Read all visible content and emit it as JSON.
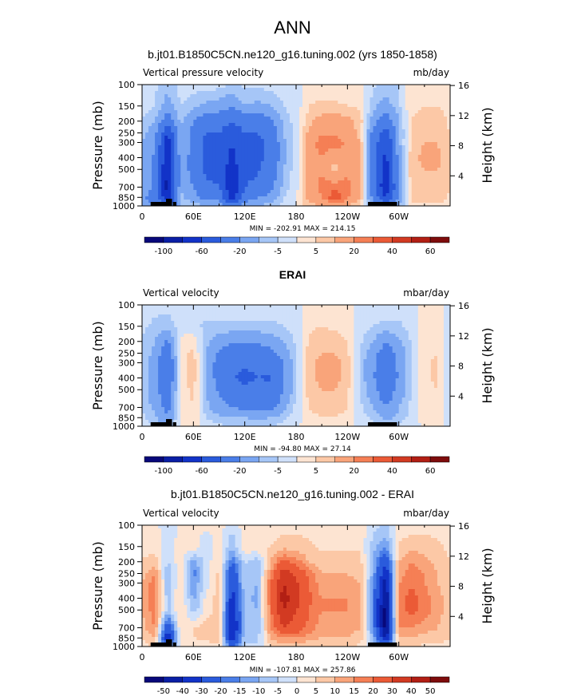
{
  "figure_title": "ANN",
  "chart_data": [
    {
      "type": "heatmap",
      "title": "b.jt01.B1850C5CN.ne120_g16.tuning.002 (yrs 1850-1858)",
      "left_label": "Vertical pressure velocity",
      "right_label": "mb/day",
      "ylabel": "Pressure (mb)",
      "y2label": "Height (km)",
      "x_ticks": [
        "0",
        "60E",
        "120E",
        "180",
        "120W",
        "60W"
      ],
      "x_tick_lon": [
        0,
        60,
        120,
        180,
        240,
        300
      ],
      "xlim": [
        0,
        360
      ],
      "y_ticks": [
        "100",
        "150",
        "200",
        "250",
        "300",
        "400",
        "500",
        "700",
        "850",
        "1000"
      ],
      "y_tick_p": [
        100,
        150,
        200,
        250,
        300,
        400,
        500,
        700,
        850,
        1000
      ],
      "ylim": [
        1000,
        100
      ],
      "y2_ticks": [
        "4",
        "8",
        "12",
        "16"
      ],
      "y2_tick_km": [
        4,
        8,
        12,
        16
      ],
      "stats": "MIN = -202.91   MAX = 214.15",
      "colorbar_labels": [
        "-100",
        "-60",
        "-20",
        "-5",
        "5",
        "20",
        "40",
        "60"
      ],
      "colorbar_label_after_box": [
        1,
        3,
        5,
        7,
        9,
        11,
        13,
        15
      ],
      "field": {
        "lon": [
          0,
          15,
          30,
          45,
          60,
          75,
          90,
          105,
          120,
          135,
          150,
          165,
          180,
          195,
          210,
          225,
          240,
          255,
          270,
          285,
          300,
          315,
          330,
          345,
          360
        ],
        "p": [
          100,
          150,
          200,
          250,
          300,
          400,
          500,
          700,
          850,
          1000
        ],
        "values": [
          [
            -3,
            -4,
            -8,
            -3,
            -3,
            -3,
            -3,
            -6,
            -4,
            -4,
            -3,
            -3,
            -2,
            3,
            3,
            3,
            2,
            2,
            -4,
            -6,
            -5,
            3,
            3,
            3,
            2
          ],
          [
            -3,
            -5,
            -14,
            -5,
            -8,
            -12,
            -14,
            -18,
            -10,
            -12,
            -10,
            -5,
            -3,
            5,
            6,
            6,
            5,
            4,
            -8,
            -14,
            -6,
            4,
            5,
            5,
            3
          ],
          [
            -5,
            -10,
            -30,
            -8,
            -20,
            -30,
            -30,
            -40,
            -30,
            -30,
            -25,
            -8,
            -3,
            8,
            14,
            15,
            12,
            8,
            -15,
            -30,
            -10,
            5,
            8,
            8,
            4
          ],
          [
            -8,
            -15,
            -60,
            -10,
            -25,
            -40,
            -40,
            -55,
            -40,
            -40,
            -30,
            -10,
            -3,
            12,
            18,
            18,
            14,
            8,
            -25,
            -50,
            -12,
            6,
            8,
            8,
            5
          ],
          [
            -10,
            -18,
            -75,
            -10,
            -25,
            -45,
            -45,
            -60,
            -45,
            -45,
            -35,
            -12,
            -3,
            14,
            25,
            25,
            18,
            10,
            -30,
            -60,
            -12,
            7,
            10,
            10,
            5
          ],
          [
            -12,
            -22,
            -80,
            -12,
            -25,
            -45,
            -48,
            -65,
            -48,
            -45,
            -35,
            -12,
            -3,
            14,
            20,
            10,
            20,
            10,
            -30,
            -65,
            -14,
            8,
            12,
            12,
            6
          ],
          [
            -12,
            -22,
            -85,
            -12,
            -25,
            -45,
            -48,
            -70,
            -45,
            -42,
            -30,
            -10,
            -2,
            12,
            18,
            8,
            18,
            10,
            -30,
            -70,
            -15,
            8,
            10,
            10,
            6
          ],
          [
            -10,
            -25,
            -90,
            -10,
            -20,
            -35,
            -38,
            -80,
            -40,
            -35,
            -25,
            -8,
            -2,
            12,
            25,
            25,
            25,
            10,
            -30,
            -80,
            -18,
            8,
            8,
            8,
            5
          ],
          [
            -15,
            -30,
            -80,
            -8,
            -15,
            -25,
            -25,
            -70,
            -30,
            -20,
            -15,
            -5,
            -1,
            12,
            18,
            40,
            22,
            10,
            -25,
            -60,
            -18,
            6,
            8,
            8,
            4
          ],
          [
            -10,
            -20,
            -40,
            -5,
            -5,
            -10,
            -10,
            -30,
            -10,
            -8,
            -8,
            -3,
            -1,
            8,
            10,
            12,
            10,
            5,
            -10,
            -30,
            -10,
            4,
            4,
            4,
            3
          ]
        ]
      }
    },
    {
      "type": "heatmap",
      "title": "ERAI",
      "left_label": "Vertical velocity",
      "right_label": "mbar/day",
      "ylabel": "Pressure (mb)",
      "y2label": "Height (km)",
      "x_ticks": [
        "0",
        "60E",
        "120E",
        "180",
        "120W",
        "60W"
      ],
      "x_tick_lon": [
        0,
        60,
        120,
        180,
        240,
        300
      ],
      "xlim": [
        0,
        360
      ],
      "y_ticks": [
        "100",
        "150",
        "200",
        "250",
        "300",
        "400",
        "500",
        "700",
        "850",
        "1000"
      ],
      "y_tick_p": [
        100,
        150,
        200,
        250,
        300,
        400,
        500,
        700,
        850,
        1000
      ],
      "ylim": [
        1000,
        100
      ],
      "y2_ticks": [
        "4",
        "8",
        "12",
        "16"
      ],
      "y2_tick_km": [
        4,
        8,
        12,
        16
      ],
      "stats": "MIN = -94.80   MAX =  27.14",
      "colorbar_labels": [
        "-100",
        "-60",
        "-20",
        "-5",
        "5",
        "20",
        "40",
        "60"
      ],
      "colorbar_label_after_box": [
        1,
        3,
        5,
        7,
        9,
        11,
        13,
        15
      ],
      "field": {
        "lon": [
          0,
          15,
          30,
          45,
          60,
          75,
          90,
          105,
          120,
          135,
          150,
          165,
          180,
          195,
          210,
          225,
          240,
          255,
          270,
          285,
          300,
          315,
          330,
          345,
          360
        ],
        "p": [
          100,
          150,
          200,
          250,
          300,
          400,
          500,
          700,
          850,
          1000
        ],
        "values": [
          [
            -3,
            -4,
            -3,
            -2,
            -3,
            -3,
            -3,
            -3,
            -3,
            -3,
            -3,
            -3,
            -2,
            2,
            2,
            2,
            2,
            -2,
            -3,
            -3,
            -3,
            -2,
            2,
            2,
            -2
          ],
          [
            -4,
            -6,
            -8,
            -3,
            -4,
            -6,
            -6,
            -6,
            -6,
            -6,
            -6,
            -5,
            -3,
            4,
            5,
            4,
            3,
            -3,
            -5,
            -6,
            -6,
            -3,
            3,
            3,
            -3
          ],
          [
            -5,
            -10,
            -22,
            2,
            4,
            -8,
            -15,
            -18,
            -20,
            -18,
            -15,
            -10,
            -4,
            6,
            8,
            8,
            5,
            -4,
            -10,
            -20,
            -12,
            -4,
            3,
            4,
            -4
          ],
          [
            -6,
            -12,
            -30,
            3,
            6,
            -10,
            -22,
            -28,
            -30,
            -28,
            -25,
            -15,
            -5,
            7,
            10,
            10,
            6,
            -5,
            -15,
            -28,
            -15,
            -5,
            4,
            5,
            -5
          ],
          [
            -6,
            -15,
            -35,
            3,
            8,
            -12,
            -25,
            -35,
            -38,
            -35,
            -32,
            -20,
            -5,
            8,
            12,
            12,
            8,
            -6,
            -18,
            -32,
            -18,
            -5,
            4,
            6,
            -5
          ],
          [
            -6,
            -15,
            -35,
            3,
            8,
            -12,
            -25,
            -38,
            -45,
            -40,
            -42,
            -22,
            -5,
            8,
            12,
            12,
            8,
            -6,
            -18,
            -35,
            -18,
            -5,
            4,
            6,
            -5
          ],
          [
            -6,
            -15,
            -32,
            3,
            6,
            -10,
            -22,
            -32,
            -35,
            -32,
            -38,
            -20,
            -5,
            7,
            10,
            10,
            6,
            -5,
            -15,
            -30,
            -15,
            -5,
            3,
            5,
            -5
          ],
          [
            -5,
            -12,
            -25,
            2,
            5,
            -8,
            -15,
            -20,
            -22,
            -22,
            -25,
            -12,
            -3,
            5,
            8,
            8,
            5,
            -4,
            -10,
            -20,
            -10,
            -3,
            3,
            4,
            -4
          ],
          [
            -4,
            -8,
            -20,
            2,
            3,
            -5,
            -8,
            -10,
            -10,
            -12,
            -10,
            -6,
            -2,
            3,
            5,
            5,
            3,
            -3,
            -6,
            -12,
            -8,
            -3,
            2,
            3,
            -3
          ],
          [
            -3,
            -5,
            -10,
            1,
            2,
            -3,
            -4,
            -5,
            -5,
            -6,
            -5,
            -3,
            -1,
            2,
            3,
            3,
            2,
            -2,
            -3,
            -6,
            -4,
            -2,
            1,
            2,
            -2
          ]
        ]
      }
    },
    {
      "type": "heatmap",
      "title": "b.jt01.B1850C5CN.ne120_g16.tuning.002 - ERAI",
      "left_label": "Vertical velocity",
      "right_label": "mbar/day",
      "ylabel": "Pressure (mb)",
      "y2label": "Height (km)",
      "x_ticks": [
        "0",
        "60E",
        "120E",
        "180",
        "120W",
        "60W"
      ],
      "x_tick_lon": [
        0,
        60,
        120,
        180,
        240,
        300
      ],
      "xlim": [
        0,
        360
      ],
      "y_ticks": [
        "100",
        "150",
        "200",
        "250",
        "300",
        "400",
        "500",
        "700",
        "850",
        "1000"
      ],
      "y_tick_p": [
        100,
        150,
        200,
        250,
        300,
        400,
        500,
        700,
        850,
        1000
      ],
      "ylim": [
        1000,
        100
      ],
      "y2_ticks": [
        "4",
        "8",
        "12",
        "16"
      ],
      "y2_tick_km": [
        4,
        8,
        12,
        16
      ],
      "stats": "MIN = -107.81   MAX = 257.86",
      "colorbar_labels": [
        "-50",
        "-40",
        "-30",
        "-20",
        "-15",
        "-10",
        "-5",
        "0",
        "5",
        "10",
        "15",
        "20",
        "30",
        "40",
        "50"
      ],
      "colorbar_label_after_box": [
        1,
        2,
        3,
        4,
        5,
        6,
        7,
        8,
        9,
        10,
        11,
        12,
        13,
        14,
        15
      ],
      "field": {
        "lon": [
          0,
          15,
          30,
          45,
          60,
          75,
          90,
          105,
          120,
          135,
          150,
          165,
          180,
          195,
          210,
          225,
          240,
          255,
          270,
          285,
          300,
          315,
          330,
          345,
          360
        ],
        "p": [
          100,
          150,
          200,
          250,
          300,
          400,
          500,
          700,
          850,
          1000
        ],
        "values": [
          [
            1,
            1,
            -2,
            1,
            1,
            1,
            2,
            -3,
            2,
            2,
            3,
            3,
            3,
            3,
            2,
            2,
            2,
            3,
            -3,
            -6,
            2,
            3,
            3,
            3,
            3
          ],
          [
            2,
            3,
            -3,
            2,
            3,
            -5,
            4,
            -10,
            4,
            3,
            5,
            8,
            8,
            6,
            4,
            4,
            4,
            4,
            -8,
            -14,
            6,
            8,
            8,
            6,
            4
          ],
          [
            6,
            8,
            -6,
            4,
            -12,
            -3,
            5,
            -20,
            -4,
            -8,
            10,
            22,
            18,
            10,
            8,
            8,
            8,
            7,
            -10,
            -30,
            10,
            15,
            12,
            8,
            5
          ],
          [
            8,
            15,
            -10,
            4,
            -18,
            -2,
            6,
            -30,
            -6,
            -10,
            15,
            35,
            28,
            18,
            10,
            10,
            10,
            8,
            -12,
            -40,
            12,
            18,
            15,
            10,
            6
          ],
          [
            10,
            18,
            -10,
            5,
            -15,
            -2,
            6,
            -30,
            -6,
            -10,
            20,
            40,
            32,
            20,
            12,
            12,
            12,
            10,
            -15,
            -45,
            15,
            20,
            15,
            10,
            6
          ],
          [
            10,
            18,
            -8,
            6,
            -12,
            2,
            8,
            -35,
            -8,
            -12,
            20,
            45,
            35,
            22,
            15,
            15,
            15,
            12,
            -18,
            -50,
            18,
            22,
            18,
            12,
            8
          ],
          [
            10,
            18,
            -8,
            6,
            -8,
            2,
            8,
            -40,
            -8,
            -10,
            18,
            40,
            30,
            20,
            15,
            15,
            15,
            12,
            -18,
            -55,
            18,
            22,
            18,
            12,
            8
          ],
          [
            8,
            15,
            -30,
            4,
            5,
            8,
            10,
            -45,
            -8,
            -10,
            15,
            30,
            25,
            18,
            12,
            12,
            12,
            10,
            -15,
            -55,
            15,
            15,
            12,
            10,
            6
          ],
          [
            5,
            10,
            -40,
            2,
            5,
            6,
            8,
            -40,
            -6,
            -6,
            10,
            15,
            15,
            12,
            10,
            10,
            10,
            8,
            -10,
            -40,
            10,
            10,
            8,
            8,
            5
          ],
          [
            3,
            5,
            -20,
            1,
            3,
            3,
            4,
            -20,
            -4,
            -4,
            5,
            8,
            8,
            6,
            5,
            5,
            5,
            4,
            -5,
            -20,
            5,
            5,
            4,
            4,
            3
          ]
        ]
      }
    }
  ],
  "colors": {
    "scale_a": [
      "#08087a",
      "#0a1fa5",
      "#1233c8",
      "#2a5bdc",
      "#4a7ee8",
      "#7aa6f2",
      "#a6c6f7",
      "#cfe0fa",
      "#fde4d2",
      "#fcc8a6",
      "#f9a47a",
      "#f57f55",
      "#eb5a36",
      "#d23a22",
      "#b21f14",
      "#7e0c0c"
    ],
    "scale_b": [
      "#08087a",
      "#0a1fa5",
      "#1233c8",
      "#2a5bdc",
      "#4a7ee8",
      "#7aa6f2",
      "#a6c6f7",
      "#cfe0fa",
      "#fde4d2",
      "#fcc8a6",
      "#f9a47a",
      "#f57f55",
      "#eb5a36",
      "#d23a22",
      "#b21f14",
      "#7e0c0c"
    ],
    "land": "#000000"
  }
}
